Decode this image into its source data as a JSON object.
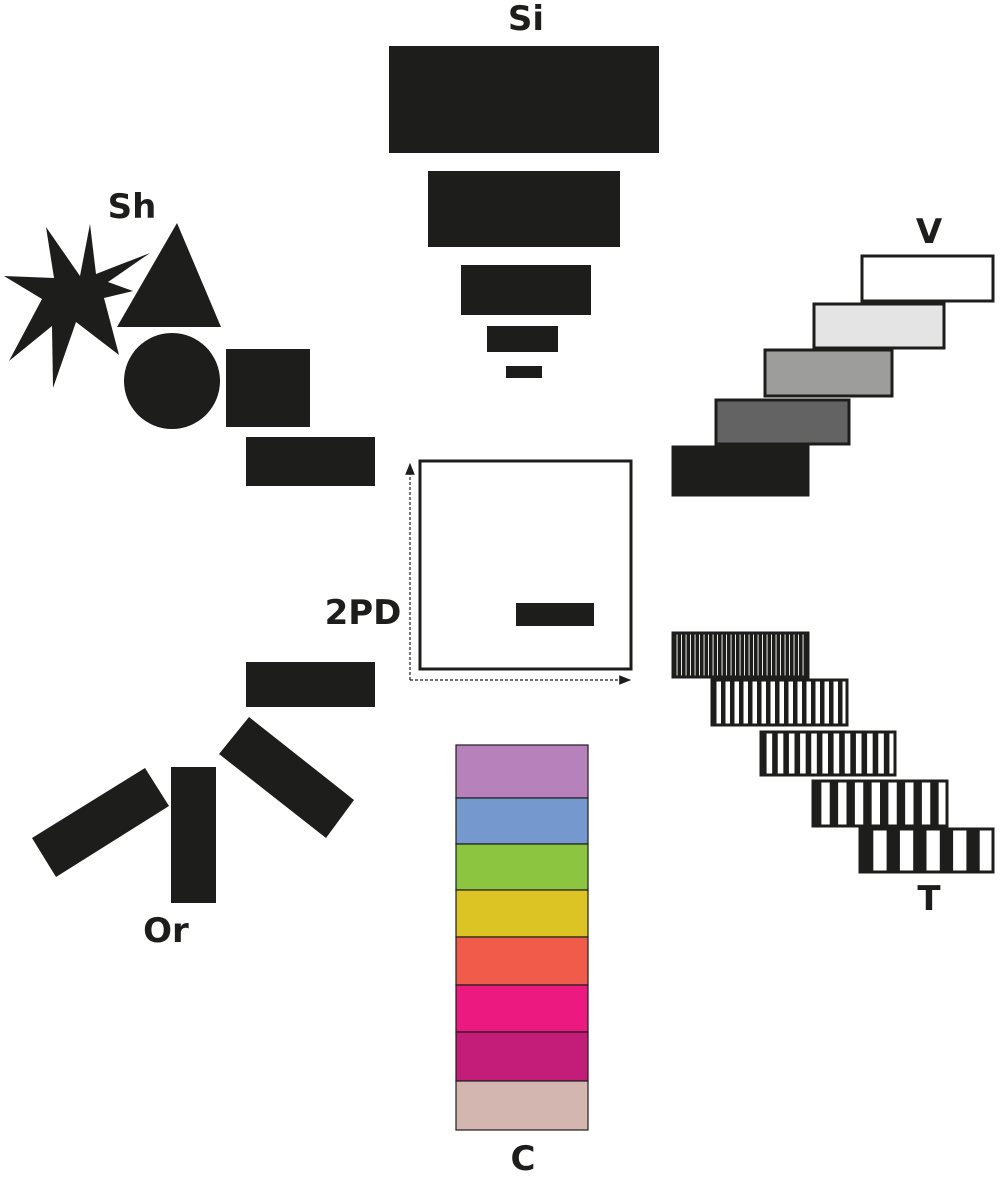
{
  "labels": {
    "size": "Si",
    "shape": "Sh",
    "value": "V",
    "two_point_discrimination": "2PD",
    "orientation": "Or",
    "texture": "T",
    "color": "C"
  },
  "colors": {
    "ink": "#1d1d1b",
    "value_shades": [
      "#1d1d1b",
      "#646363",
      "#9d9d9c",
      "#e3e4e3",
      "#ffffff"
    ],
    "color_swatches": [
      "#b782bb",
      "#7598cf",
      "#8cc641",
      "#dcc425",
      "#f15c4a",
      "#ec1a80",
      "#c41c79",
      "#d4b6b0"
    ]
  },
  "icons": {
    "star": "star-shape-icon",
    "triangle": "triangle-shape-icon",
    "circle": "circle-shape-icon",
    "square": "square-shape-icon",
    "rectangle": "rectangle-shape-icon"
  },
  "texture_stripe_counts": [
    30,
    15,
    12,
    8,
    5
  ]
}
